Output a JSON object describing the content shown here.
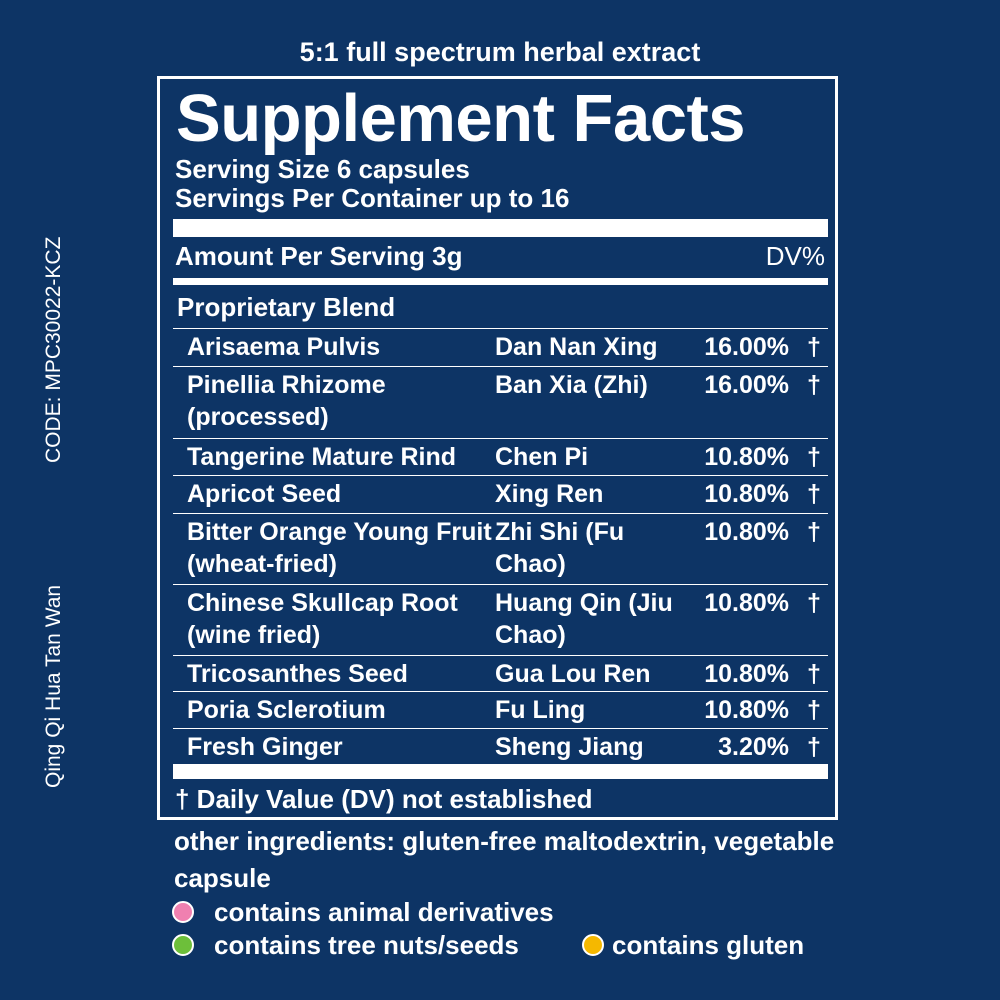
{
  "header": {
    "subtitle": "5:1 full spectrum herbal extract",
    "code": "CODE: MPC30022-KCZ",
    "product_name": "Qing Qi Hua Tan Wan"
  },
  "facts": {
    "title": "Supplement Facts",
    "serving_size": "Serving Size 6 capsules",
    "servings_per_container": "Servings Per Container up to 16",
    "amount_per_serving": "Amount Per Serving 3g",
    "dv_header": "DV%",
    "blend_title": "Proprietary Blend",
    "ingredients": [
      {
        "name": "Arisaema Pulvis",
        "pinyin": "Dan Nan Xing",
        "percent": "16.00%",
        "mark": "†"
      },
      {
        "name": "Pinellia Rhizome (processed)",
        "pinyin": "Ban Xia (Zhi)",
        "percent": "16.00%",
        "mark": "†"
      },
      {
        "name": "Tangerine Mature Rind",
        "pinyin": "Chen Pi",
        "percent": "10.80%",
        "mark": "†"
      },
      {
        "name": "Apricot Seed",
        "pinyin": "Xing Ren",
        "percent": "10.80%",
        "mark": "†"
      },
      {
        "name": "Bitter Orange Young Fruit (wheat-fried)",
        "pinyin": "Zhi Shi (Fu Chao)",
        "percent": "10.80%",
        "mark": "†"
      },
      {
        "name": "Chinese Skullcap Root (wine fried)",
        "pinyin": "Huang Qin (Jiu Chao)",
        "percent": "10.80%",
        "mark": "†"
      },
      {
        "name": "Tricosanthes Seed",
        "pinyin": "Gua Lou Ren",
        "percent": "10.80%",
        "mark": "†"
      },
      {
        "name": "Poria Sclerotium",
        "pinyin": "Fu Ling",
        "percent": "10.80%",
        "mark": "†"
      },
      {
        "name": "Fresh Ginger",
        "pinyin": "Sheng Jiang",
        "percent": "3.20%",
        "mark": "†"
      }
    ],
    "footnote": "† Daily Value (DV) not established"
  },
  "other_ingredients": "other ingredients: gluten-free maltodextrin, vegetable capsule",
  "legend": {
    "animal": {
      "label": "contains animal derivatives",
      "color": "#f080b0"
    },
    "nuts": {
      "label": "contains tree nuts/seeds",
      "color": "#6dbf3a"
    },
    "gluten": {
      "label": "contains gluten",
      "color": "#f5b800"
    }
  },
  "colors": {
    "background": "#0d3465",
    "text": "#ffffff"
  }
}
